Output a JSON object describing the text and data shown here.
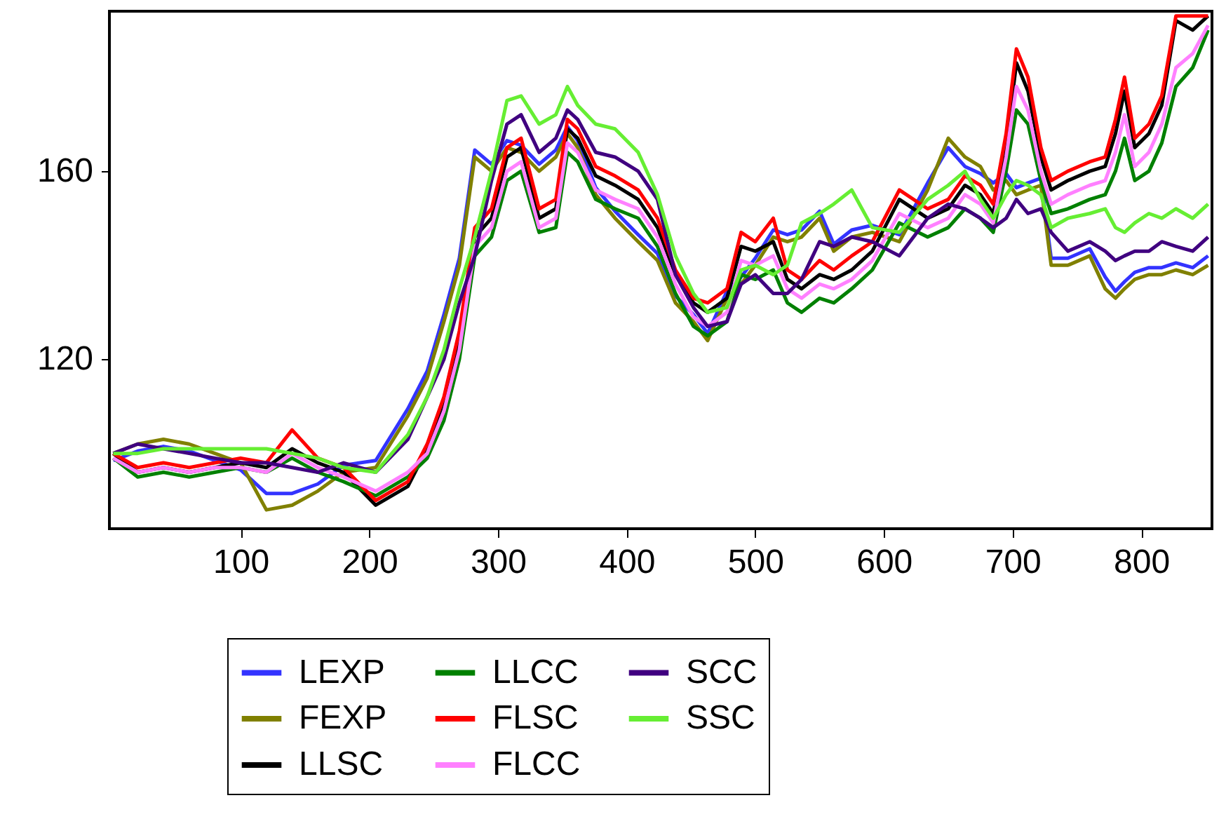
{
  "chart_data": {
    "type": "line",
    "x": [
      1,
      20,
      40,
      60,
      80,
      100,
      120,
      140,
      160,
      180,
      205,
      230,
      245,
      258,
      270,
      282,
      295,
      307,
      318,
      332,
      345,
      354,
      362,
      376,
      391,
      409,
      424,
      438,
      452,
      463,
      478,
      489,
      500,
      514,
      525,
      536,
      550,
      561,
      575,
      591,
      612,
      634,
      650,
      663,
      675,
      685,
      695,
      703,
      712,
      722,
      730,
      743,
      760,
      772,
      780,
      787,
      795,
      806,
      816,
      827,
      840,
      852
    ],
    "xlim": [
      -2,
      855
    ],
    "xticks": [
      100,
      200,
      300,
      400,
      500,
      600,
      700,
      800
    ],
    "ylim": [
      84,
      194
    ],
    "yticks": [
      120,
      160
    ],
    "grid": false,
    "legend": "bottom",
    "series": [
      {
        "name": "LEXP",
        "color": "#3333ff",
        "values": [
          98.5,
          100.5,
          101.5,
          100.5,
          98.5,
          96.5,
          91.5,
          91.5,
          93.5,
          97.5,
          98.5,
          109.5,
          117.5,
          129.5,
          141.5,
          164.5,
          161.5,
          166.5,
          165.5,
          161.5,
          164.5,
          169.5,
          166.5,
          156.5,
          151.5,
          146.5,
          142.5,
          133.5,
          129.5,
          125.5,
          134.5,
          137.5,
          141.5,
          147.5,
          146.5,
          147.5,
          151.5,
          144.5,
          147.5,
          148.5,
          146.5,
          157.5,
          165,
          161,
          159.5,
          157.5,
          159.5,
          156.5,
          157.5,
          158.5,
          141.5,
          141.5,
          143.5,
          137.5,
          134.5,
          136.5,
          138.5,
          139.5,
          139.5,
          140.5,
          139.5,
          142
        ]
      },
      {
        "name": "FEXP",
        "color": "#808000",
        "values": [
          100,
          102,
          103,
          102,
          100,
          98,
          88,
          89,
          92,
          96,
          97,
          108,
          116,
          128,
          140,
          163,
          160,
          165,
          164,
          160,
          163,
          168,
          165,
          155,
          150,
          145,
          141,
          132,
          128,
          124,
          133,
          136,
          140,
          146,
          145,
          146,
          150,
          143,
          146,
          147,
          145,
          156,
          167,
          163,
          161,
          156,
          158,
          155,
          156,
          157,
          140,
          140,
          142,
          135,
          133,
          135,
          137,
          138,
          138,
          139,
          138,
          140
        ]
      },
      {
        "name": "LLSC",
        "color": "#000000",
        "values": [
          100,
          96,
          97,
          96,
          97,
          98,
          97,
          101,
          98,
          96,
          89,
          93,
          101,
          110,
          124,
          146,
          150,
          163,
          165,
          150,
          152,
          169,
          167,
          159,
          157,
          154,
          148,
          138,
          132,
          130,
          133,
          144,
          143,
          145,
          137,
          135,
          138,
          137,
          139,
          143,
          154,
          150,
          152,
          157,
          155,
          151,
          165,
          183,
          177,
          163,
          156,
          158,
          160,
          161,
          168,
          177,
          165,
          168,
          174,
          192,
          190,
          193
        ]
      },
      {
        "name": "LLCC",
        "color": "#008000",
        "values": [
          99,
          95,
          96,
          95,
          96,
          97,
          96,
          99,
          96,
          94,
          91,
          95,
          99,
          107,
          120,
          142,
          146,
          158,
          160,
          147,
          148,
          164,
          162,
          154,
          152,
          150,
          144,
          134,
          127,
          125,
          128,
          138,
          137,
          139,
          132,
          130,
          133,
          132,
          135,
          139,
          149,
          146,
          148,
          152,
          150,
          147,
          160,
          173,
          170,
          158,
          151,
          152,
          154,
          155,
          160,
          167,
          158,
          160,
          166,
          178,
          182,
          190
        ]
      },
      {
        "name": "FLSC",
        "color": "#ff0000",
        "values": [
          100,
          97,
          98,
          97,
          98,
          99,
          98,
          105,
          99,
          97,
          90,
          94,
          102,
          112,
          126,
          148,
          152,
          165,
          167,
          152,
          154,
          171,
          169,
          161,
          159,
          156,
          150,
          139,
          133,
          132,
          135,
          147,
          145,
          150,
          139,
          137,
          141,
          139,
          142,
          145,
          156,
          152,
          154,
          159,
          157,
          153,
          168,
          186,
          180,
          165,
          158,
          160,
          162,
          163,
          171,
          180,
          167,
          170,
          176,
          193,
          193,
          193
        ]
      },
      {
        "name": "FLCC",
        "color": "#ff80ff",
        "values": [
          99,
          96,
          97,
          96,
          97,
          97,
          96,
          100,
          97,
          95,
          92,
          96,
          100,
          109,
          122,
          144,
          148,
          160,
          162,
          148,
          150,
          166,
          164,
          156,
          154,
          152,
          146,
          136,
          129,
          127,
          130,
          141,
          140,
          142,
          135,
          133,
          136,
          135,
          137,
          141,
          151,
          148,
          150,
          155,
          153,
          149,
          163,
          178,
          173,
          160,
          153,
          155,
          157,
          158,
          164,
          172,
          161,
          164,
          170,
          182,
          185,
          191
        ]
      },
      {
        "name": "SCC",
        "color": "#400080",
        "values": [
          100,
          102,
          101,
          100,
          99,
          98,
          98,
          97,
          96,
          98,
          96,
          103,
          112,
          120,
          132,
          142,
          158,
          170,
          172,
          164,
          167,
          173,
          171,
          164,
          163,
          160,
          154,
          138,
          131,
          127,
          128,
          136,
          138,
          134,
          134,
          137,
          145,
          144,
          146,
          145,
          142,
          150,
          153,
          152,
          150,
          148,
          150,
          154,
          151,
          152,
          147,
          143,
          145,
          143,
          141,
          142,
          143,
          143,
          145,
          144,
          143,
          146
        ]
      },
      {
        "name": "SSC",
        "color": "#66ee33",
        "values": [
          100,
          100,
          101,
          101,
          101,
          101,
          101,
          100,
          99,
          97,
          96,
          104,
          112,
          122,
          135,
          146,
          160,
          175,
          176,
          170,
          172,
          178,
          174,
          170,
          169,
          164,
          155,
          142,
          134,
          130,
          131,
          139,
          140,
          138,
          140,
          149,
          151,
          153,
          156,
          148,
          147,
          154,
          157,
          160,
          154,
          150,
          155,
          158,
          157,
          155,
          148,
          150,
          151,
          152,
          148,
          147,
          149,
          151,
          150,
          152,
          150,
          153
        ]
      }
    ]
  }
}
